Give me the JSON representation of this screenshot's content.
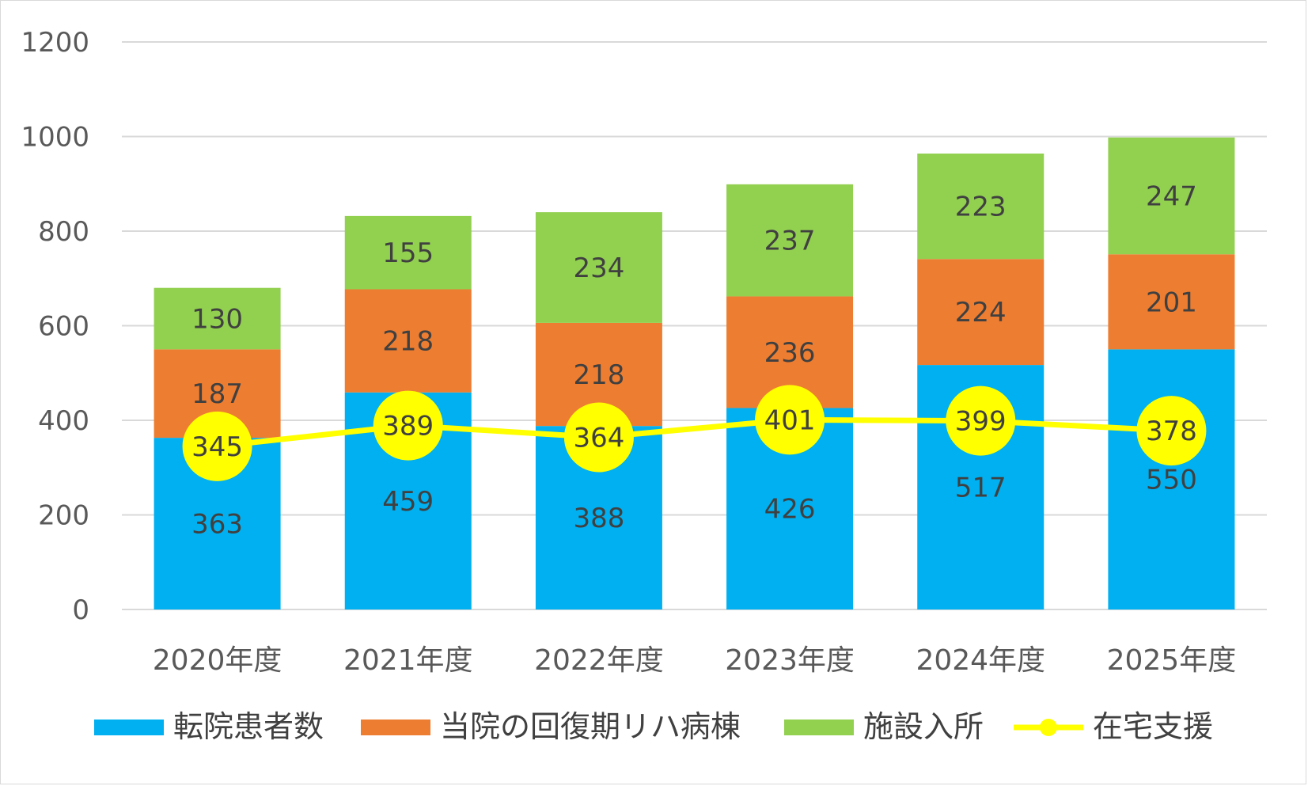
{
  "chart_data": {
    "type": "bar",
    "stacked": true,
    "categories": [
      "2020年度",
      "2021年度",
      "2022年度",
      "2023年度",
      "2024年度",
      "2025年度"
    ],
    "series": [
      {
        "name": "転院患者数",
        "type": "bar",
        "color": "#00b0f0",
        "values": [
          363,
          459,
          388,
          426,
          517,
          550
        ]
      },
      {
        "name": "当院の回復期リハ病棟",
        "type": "bar",
        "color": "#ed7d31",
        "values": [
          187,
          218,
          218,
          236,
          224,
          201
        ]
      },
      {
        "name": "施設入所",
        "type": "bar",
        "color": "#92d050",
        "values": [
          130,
          155,
          234,
          237,
          223,
          247
        ]
      },
      {
        "name": "在宅支援",
        "type": "line",
        "color": "#ffff00",
        "marker": "circle",
        "values": [
          345,
          389,
          364,
          401,
          399,
          378
        ]
      }
    ],
    "yticks": [
      "0",
      "200",
      "400",
      "600",
      "800",
      "1000",
      "1200"
    ],
    "ylim": [
      0,
      1200
    ],
    "grid": true,
    "legend": "bottom"
  }
}
